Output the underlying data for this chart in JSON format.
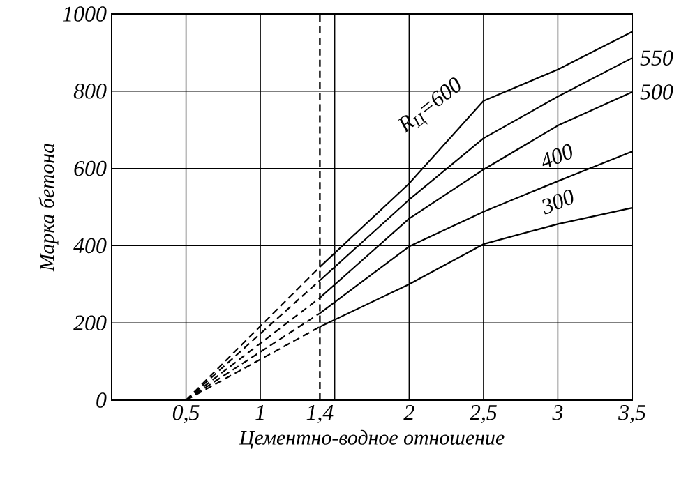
{
  "chart_data": {
    "type": "line",
    "xlabel": "Цементно-водное отношение",
    "ylabel": "Марка бетона",
    "xlim": [
      0,
      3.5
    ],
    "ylim": [
      0,
      1000
    ],
    "xticks": [
      {
        "value": 0.5,
        "label": "0,5"
      },
      {
        "value": 1,
        "label": "1"
      },
      {
        "value": 1.4,
        "label": "1,4"
      },
      {
        "value": 1.5,
        "label": null
      },
      {
        "value": 2,
        "label": "2"
      },
      {
        "value": 2.5,
        "label": "2,5"
      },
      {
        "value": 3,
        "label": "3"
      },
      {
        "value": 3.5,
        "label": "3,5"
      }
    ],
    "yticks": [
      0,
      200,
      400,
      600,
      800,
      1000
    ],
    "grid": true,
    "marker": "none",
    "ref_lines": [
      {
        "axis": "x",
        "value": 1.4,
        "line_style": "dashed",
        "color": "#000000"
      }
    ],
    "series": [
      {
        "name": "R$_{Ц}$=600",
        "color": "#000000",
        "line_style": "solid",
        "x": [
          1.4,
          2,
          2.5,
          3,
          3.5
        ],
        "values": [
          345,
          561,
          775,
          856,
          954
        ]
      },
      {
        "name": "550",
        "color": "#000000",
        "line_style": "solid",
        "x": [
          1.4,
          2,
          2.5,
          3,
          3.5
        ],
        "values": [
          310,
          519,
          678,
          786,
          886
        ]
      },
      {
        "name": "500",
        "color": "#000000",
        "line_style": "solid",
        "x": [
          1.4,
          2,
          2.5,
          3,
          3.5
        ],
        "values": [
          265,
          470,
          597,
          711,
          798
        ]
      },
      {
        "name": "400",
        "color": "#000000",
        "line_style": "solid",
        "x": [
          1.4,
          2,
          2.5,
          3,
          3.5
        ],
        "values": [
          225,
          398,
          488,
          567,
          644
        ]
      },
      {
        "name": "300",
        "color": "#000000",
        "line_style": "solid",
        "x": [
          1.4,
          2,
          2.5,
          3,
          3.5
        ],
        "values": [
          190,
          300,
          404,
          456,
          498
        ]
      },
      {
        "color": "#000000",
        "line_style": "dashed",
        "x": [
          0.5,
          1.4
        ],
        "values": [
          0,
          345
        ]
      },
      {
        "color": "#000000",
        "line_style": "dashed",
        "x": [
          0.5,
          1.4
        ],
        "values": [
          0,
          310
        ]
      },
      {
        "color": "#000000",
        "line_style": "dashed",
        "x": [
          0.5,
          1.4
        ],
        "values": [
          0,
          265
        ]
      },
      {
        "color": "#000000",
        "line_style": "dashed",
        "x": [
          0.5,
          1.4
        ],
        "values": [
          0,
          225
        ]
      },
      {
        "color": "#000000",
        "line_style": "dashed",
        "x": [
          0.5,
          1.4
        ],
        "values": [
          0,
          190
        ]
      }
    ]
  }
}
